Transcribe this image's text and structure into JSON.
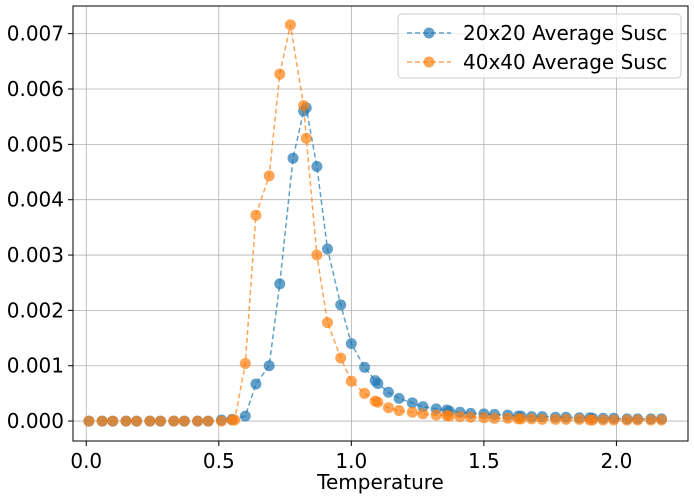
{
  "chart_data": {
    "type": "line",
    "title": "",
    "xlabel": "Temperature",
    "ylabel": "",
    "xlim": [
      -0.05,
      2.27
    ],
    "ylim": [
      -0.00036,
      0.0075
    ],
    "grid": true,
    "legend_position": "top-right",
    "x_ticks": [
      0.0,
      0.5,
      1.0,
      1.5,
      2.0
    ],
    "x_tick_labels": [
      "0.0",
      "0.5",
      "1.0",
      "1.5",
      "2.0"
    ],
    "y_ticks": [
      0.0,
      0.001,
      0.002,
      0.003,
      0.004,
      0.005,
      0.006,
      0.007
    ],
    "y_tick_labels": [
      "0.000",
      "0.001",
      "0.002",
      "0.003",
      "0.004",
      "0.005",
      "0.006",
      "0.007"
    ],
    "series": [
      {
        "name": "20x20 Average Susc",
        "color": "#1f77b4",
        "marker": "circle",
        "linestyle": "dashed",
        "points": [
          [
            0.01,
            0.0
          ],
          [
            0.06,
            0.0
          ],
          [
            0.1,
            0.0
          ],
          [
            0.15,
            0.0
          ],
          [
            0.19,
            0.0
          ],
          [
            0.24,
            0.0
          ],
          [
            0.28,
            0.0
          ],
          [
            0.33,
            0.0
          ],
          [
            0.37,
            0.0
          ],
          [
            0.42,
            0.0
          ],
          [
            0.46,
            0.0
          ],
          [
            0.51,
            2e-05
          ],
          [
            0.55,
            3e-05
          ],
          [
            0.6,
            9e-05
          ],
          [
            0.64,
            0.00067
          ],
          [
            0.69,
            0.001
          ],
          [
            0.73,
            0.00248
          ],
          [
            0.78,
            0.00475
          ],
          [
            0.82,
            0.0056
          ],
          [
            0.83,
            0.00566
          ],
          [
            0.87,
            0.0046
          ],
          [
            0.91,
            0.00311
          ],
          [
            0.96,
            0.0021
          ],
          [
            1.0,
            0.0014
          ],
          [
            1.05,
            0.00097
          ],
          [
            1.09,
            0.00073
          ],
          [
            1.1,
            0.00068
          ],
          [
            1.14,
            0.00052
          ],
          [
            1.18,
            0.00041
          ],
          [
            1.23,
            0.00033
          ],
          [
            1.27,
            0.00026
          ],
          [
            1.32,
            0.00022
          ],
          [
            1.36,
            0.0002
          ],
          [
            1.37,
            0.00018
          ],
          [
            1.41,
            0.00016
          ],
          [
            1.45,
            0.00014
          ],
          [
            1.5,
            0.00013
          ],
          [
            1.54,
            0.00012
          ],
          [
            1.59,
            0.00011
          ],
          [
            1.63,
            9e-05
          ],
          [
            1.64,
            9e-05
          ],
          [
            1.68,
            8e-05
          ],
          [
            1.72,
            8e-05
          ],
          [
            1.77,
            7e-05
          ],
          [
            1.81,
            7e-05
          ],
          [
            1.86,
            6e-05
          ],
          [
            1.9,
            6e-05
          ],
          [
            1.91,
            5e-05
          ],
          [
            1.95,
            5e-05
          ],
          [
            1.99,
            5e-05
          ],
          [
            2.04,
            4e-05
          ],
          [
            2.08,
            4e-05
          ],
          [
            2.13,
            4e-05
          ],
          [
            2.17,
            4e-05
          ]
        ]
      },
      {
        "name": "40x40 Average Susc",
        "color": "#ff7f0e",
        "marker": "circle",
        "linestyle": "dashed",
        "points": [
          [
            0.01,
            0.0
          ],
          [
            0.06,
            0.0
          ],
          [
            0.1,
            0.0
          ],
          [
            0.15,
            0.0
          ],
          [
            0.19,
            0.0
          ],
          [
            0.24,
            0.0
          ],
          [
            0.28,
            0.0
          ],
          [
            0.33,
            0.0
          ],
          [
            0.37,
            0.0
          ],
          [
            0.42,
            0.0
          ],
          [
            0.46,
            0.0
          ],
          [
            0.51,
            0.0
          ],
          [
            0.55,
            2e-05
          ],
          [
            0.56,
            2e-05
          ],
          [
            0.6,
            0.00104
          ],
          [
            0.64,
            0.00372
          ],
          [
            0.69,
            0.00443
          ],
          [
            0.73,
            0.00627
          ],
          [
            0.77,
            0.00716
          ],
          [
            0.82,
            0.0057
          ],
          [
            0.83,
            0.00511
          ],
          [
            0.87,
            0.003
          ],
          [
            0.91,
            0.00178
          ],
          [
            0.96,
            0.00114
          ],
          [
            1.0,
            0.00072
          ],
          [
            1.05,
            0.0005
          ],
          [
            1.09,
            0.00036
          ],
          [
            1.1,
            0.00034
          ],
          [
            1.14,
            0.00024
          ],
          [
            1.18,
            0.00019
          ],
          [
            1.23,
            0.00016
          ],
          [
            1.27,
            0.00013
          ],
          [
            1.32,
            0.00011
          ],
          [
            1.36,
            0.0001
          ],
          [
            1.37,
            9e-05
          ],
          [
            1.41,
            8e-05
          ],
          [
            1.45,
            7e-05
          ],
          [
            1.5,
            6e-05
          ],
          [
            1.54,
            5e-05
          ],
          [
            1.59,
            5e-05
          ],
          [
            1.63,
            4e-05
          ],
          [
            1.64,
            4e-05
          ],
          [
            1.68,
            4e-05
          ],
          [
            1.72,
            3e-05
          ],
          [
            1.77,
            3e-05
          ],
          [
            1.81,
            3e-05
          ],
          [
            1.86,
            3e-05
          ],
          [
            1.9,
            2e-05
          ],
          [
            1.91,
            2e-05
          ],
          [
            1.95,
            2e-05
          ],
          [
            1.99,
            2e-05
          ],
          [
            2.04,
            2e-05
          ],
          [
            2.08,
            2e-05
          ],
          [
            2.13,
            2e-05
          ],
          [
            2.17,
            2e-05
          ]
        ]
      }
    ]
  }
}
